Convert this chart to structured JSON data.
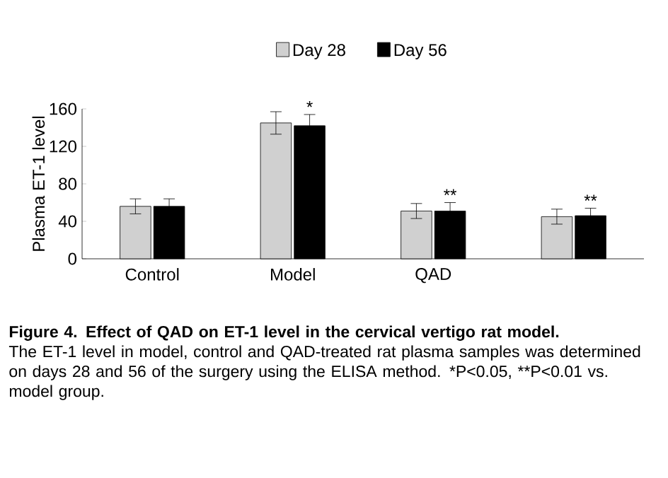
{
  "chart_data": {
    "type": "bar",
    "categories": [
      "Control",
      "Model",
      "QAD",
      null
    ],
    "series": [
      {
        "name": "Day 28",
        "color": "#d0d0d0",
        "values": [
          56,
          145,
          51,
          45
        ],
        "errors": [
          8,
          12,
          8,
          8
        ]
      },
      {
        "name": "Day 56",
        "color": "#000000",
        "values": [
          56,
          142,
          51,
          46
        ],
        "errors": [
          8,
          12,
          9,
          8
        ],
        "value_labels": [
          null,
          "*",
          "**",
          "**"
        ]
      }
    ],
    "ylabel": "Plasma ET-1 level",
    "ylim": [
      0,
      160
    ],
    "yticks": [
      0,
      40,
      80,
      120,
      160
    ],
    "legend": "top",
    "annotations": [
      "Figure 4. Effect of QAD on ET-1 level in the cervical vertigo rat model.",
      "The ET-1 level in model, control and QAD-treated rat plasma samples was determined on days 28 and 56 of the surgery using the ELISA method. *P<0.05, **P<0.01 vs. model group."
    ]
  }
}
